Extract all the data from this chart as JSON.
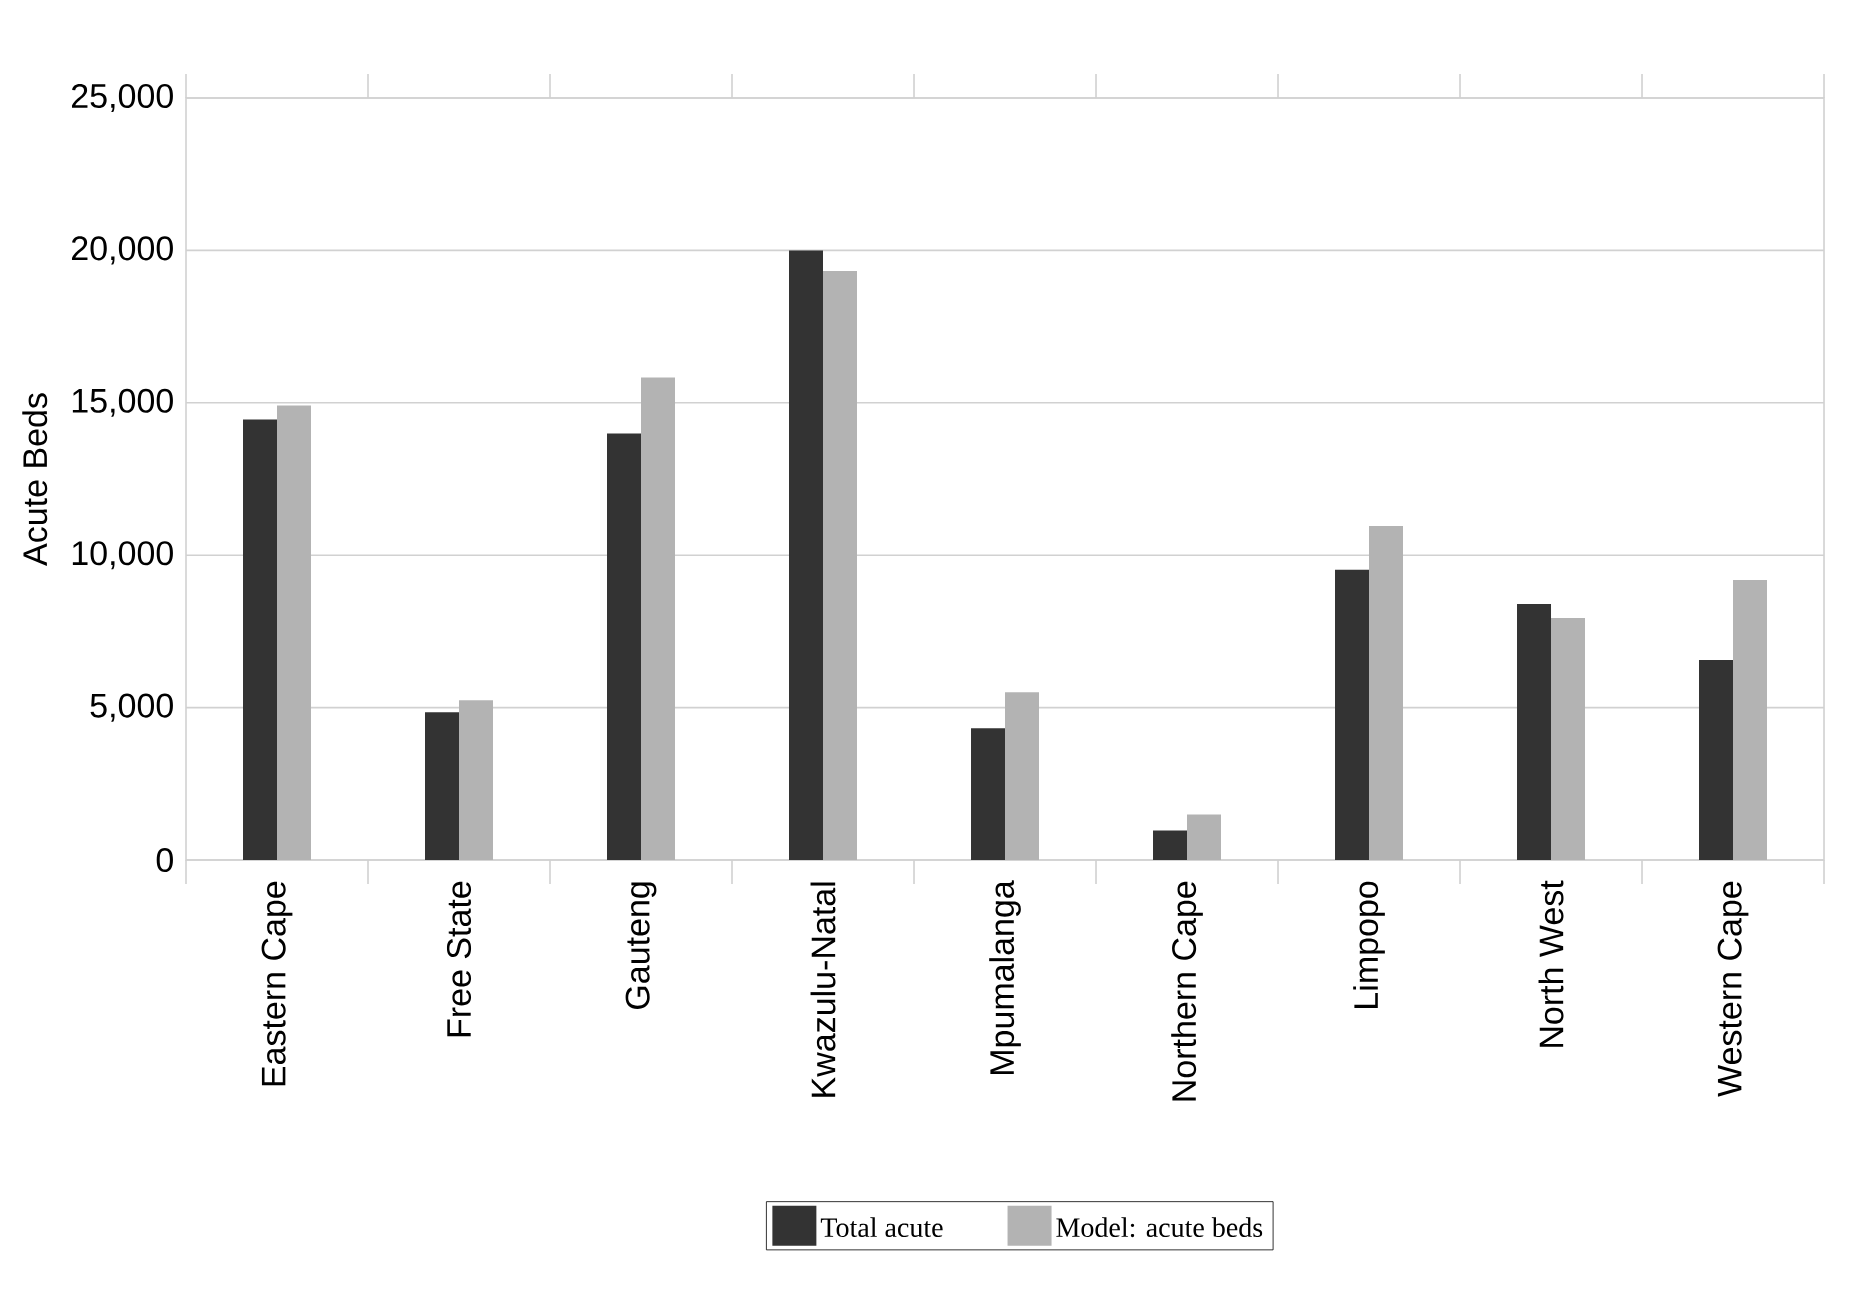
{
  "chart_data": {
    "type": "bar",
    "ylabel": "Acute Beds",
    "categories": [
      "Eastern Cape",
      "Free State",
      "Gauteng",
      "Kwazulu-Natal",
      "Mpumalanga",
      "Northern Cape",
      "Limpopo",
      "North West",
      "Western Cape"
    ],
    "series": [
      {
        "name": "Total acute",
        "color": "#333333",
        "values": [
          14450,
          4850,
          13990,
          20000,
          4320,
          970,
          9520,
          8400,
          6560
        ]
      },
      {
        "name": "Model: acute beds",
        "color": "#b3b3b3",
        "values": [
          14910,
          5240,
          15830,
          19320,
          5500,
          1490,
          10960,
          7940,
          9190
        ]
      }
    ],
    "ylim": [
      0,
      25000
    ],
    "yticks": [
      {
        "value": 0,
        "label": "0"
      },
      {
        "value": 5000,
        "label": "5,000"
      },
      {
        "value": 10000,
        "label": "10,000"
      },
      {
        "value": 15000,
        "label": "15,000"
      },
      {
        "value": 20000,
        "label": "20,000"
      },
      {
        "value": 25000,
        "label": "25,000"
      }
    ],
    "grid": "y",
    "legend": "bottom"
  }
}
